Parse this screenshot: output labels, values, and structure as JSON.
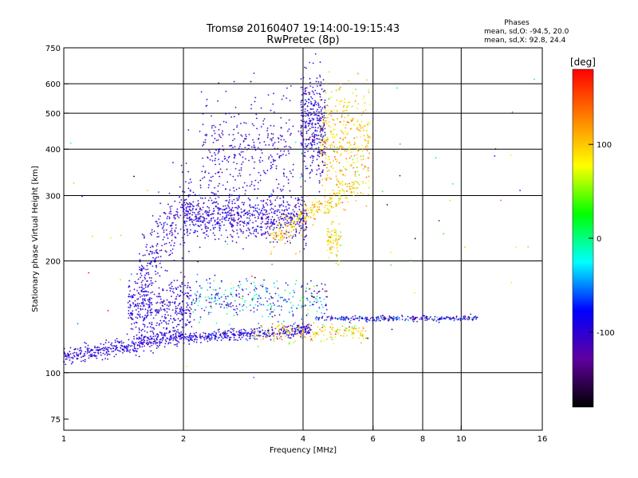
{
  "chart_data": {
    "type": "scatter",
    "title": "Tromsø 20160407 19:14:00-19:15:43",
    "subtitle": "RwPretec (8p)",
    "xlabel": "Frequency [MHz]",
    "ylabel": "Stationary phase Virtual Height [km]",
    "x_scale": "log",
    "y_scale": "log",
    "xlim": [
      1,
      16
    ],
    "ylim": [
      70,
      750
    ],
    "x_ticks": [
      {
        "value": 1,
        "label": "1"
      },
      {
        "value": 2,
        "label": "2"
      },
      {
        "value": 4,
        "label": "4"
      },
      {
        "value": 6,
        "label": "6"
      },
      {
        "value": 8,
        "label": "8"
      },
      {
        "value": 10,
        "label": "10"
      },
      {
        "value": 16,
        "label": "16"
      }
    ],
    "x_gridlines": [
      2,
      4,
      6,
      8,
      10
    ],
    "y_ticks": [
      {
        "value": 75,
        "label": "75"
      },
      {
        "value": 100,
        "label": "100"
      },
      {
        "value": 200,
        "label": "200"
      },
      {
        "value": 300,
        "label": "300"
      },
      {
        "value": 400,
        "label": "400"
      },
      {
        "value": 500,
        "label": "500"
      },
      {
        "value": 600,
        "label": "600"
      },
      {
        "value": 750,
        "label": "750"
      }
    ],
    "y_gridlines": [
      100,
      200,
      300,
      400,
      500,
      600
    ],
    "grid": true,
    "stats": {
      "heading": "Phases",
      "line_o": "mean, sd,O: -94.5, 20.0",
      "line_x": "mean, sd,X:  92.8, 24.4"
    },
    "colorbar": {
      "label": "[deg]",
      "range": [
        -180,
        180
      ],
      "ticks": [
        {
          "value": 100,
          "label": "100"
        },
        {
          "value": 0,
          "label": "0"
        },
        {
          "value": -100,
          "label": "-100"
        }
      ],
      "colors": [
        "#ff0000",
        "#ff8000",
        "#ffff00",
        "#00ff00",
        "#00ffff",
        "#0000ff",
        "#6000a0",
        "#000000"
      ]
    },
    "traces": [
      {
        "name": "",
        "x_range": [
          1.0,
          2.0
        ],
        "y_center": 118,
        "y_slope": 0.14,
        "spread": 0.025,
        "phase": -100,
        "phase_sd": 12,
        "count": 420
      },
      {
        "name": "",
        "x_range": [
          2.0,
          4.2
        ],
        "y_center": 127,
        "y_slope": 0.05,
        "spread": 0.018,
        "phase": -95,
        "phase_sd": 20,
        "count": 380
      },
      {
        "name": "",
        "x_range": [
          3.0,
          5.8
        ],
        "y_center": 128,
        "y_slope": 0.0,
        "spread": 0.03,
        "phase": 95,
        "phase_sd": 30,
        "count": 180
      },
      {
        "name": "",
        "x_range": [
          1.45,
          2.1
        ],
        "y_center": 150,
        "y_slope": 0.0,
        "spread": 0.09,
        "phase": -100,
        "phase_sd": 15,
        "count": 420
      },
      {
        "name": "",
        "x_range": [
          2.1,
          4.6
        ],
        "y_center": 158,
        "y_slope": 0.0,
        "spread": 0.06,
        "phase": -60,
        "phase_sd": 50,
        "count": 320
      },
      {
        "name": "",
        "x_range": [
          4.3,
          11.0
        ],
        "y_center": 140,
        "y_slope": 0.0,
        "spread": 0.008,
        "phase": -95,
        "phase_sd": 35,
        "count": 280
      },
      {
        "name": "",
        "x_range": [
          1.55,
          2.1
        ],
        "y_center": 235,
        "y_slope": 0.5,
        "spread": 0.1,
        "phase": -100,
        "phase_sd": 15,
        "count": 260
      },
      {
        "name": "",
        "x_range": [
          2.0,
          4.1
        ],
        "y_center": 262,
        "y_slope": 0.0,
        "spread": 0.07,
        "phase": -100,
        "phase_sd": 15,
        "count": 720
      },
      {
        "name": "",
        "x_range": [
          3.3,
          5.5
        ],
        "y_center": 272,
        "y_slope": 0.35,
        "spread": 0.04,
        "phase": 100,
        "phase_sd": 25,
        "count": 260
      },
      {
        "name": "",
        "x_range": [
          2.2,
          3.8
        ],
        "y_center": 400,
        "y_slope": 0.0,
        "spread": 0.15,
        "phase": -105,
        "phase_sd": 15,
        "count": 340
      },
      {
        "name": "",
        "x_range": [
          3.95,
          4.55
        ],
        "y_center": 460,
        "y_slope": 0.0,
        "spread": 0.16,
        "phase": -100,
        "phase_sd": 20,
        "count": 360
      },
      {
        "name": "",
        "x_range": [
          4.4,
          5.9
        ],
        "y_center": 420,
        "y_slope": 0.0,
        "spread": 0.18,
        "phase": 100,
        "phase_sd": 25,
        "count": 380
      },
      {
        "name": "",
        "x_range": [
          4.6,
          5.0
        ],
        "y_center": 230,
        "y_slope": 0.0,
        "spread": 0.06,
        "phase": 90,
        "phase_sd": 25,
        "count": 80
      },
      {
        "name": "",
        "x_range": [
          1.0,
          16.0
        ],
        "y_center": 250,
        "y_slope": 0.0,
        "spread": 0.45,
        "phase": 0,
        "phase_sd": 110,
        "count": 70
      }
    ]
  }
}
